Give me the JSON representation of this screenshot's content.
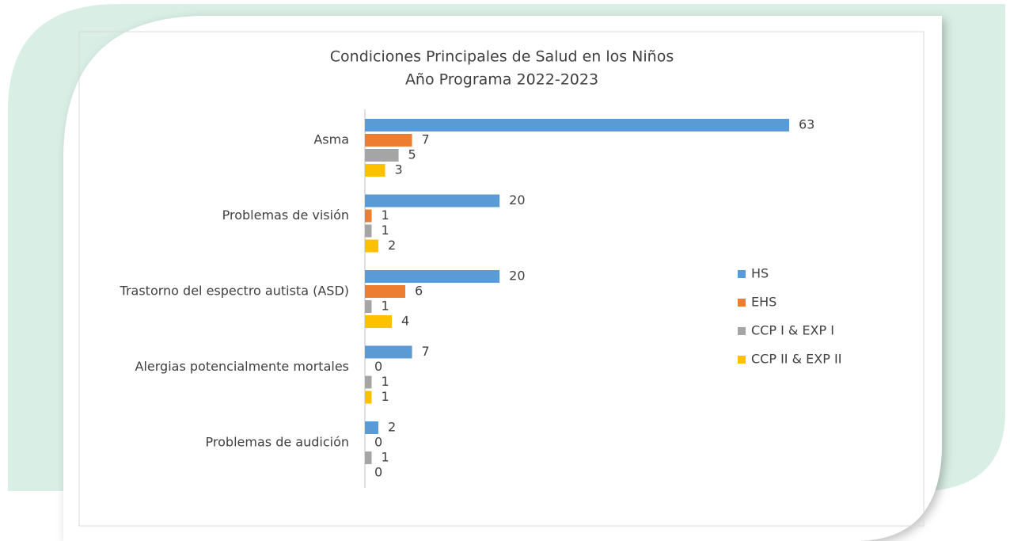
{
  "chart_data": {
    "type": "hbar",
    "title": "Condiciones Principales de Salud en los Niños",
    "subtitle": "Año Programa 2022-2023",
    "categories": [
      "Asma",
      "Problemas de visión",
      "Trastorno del espectro autista (ASD)",
      "Alergias potencialmente mortales",
      "Problemas de audición"
    ],
    "series": [
      {
        "name": "HS",
        "color": "#5b9bd5",
        "values": [
          63,
          20,
          20,
          7,
          2
        ]
      },
      {
        "name": "EHS",
        "color": "#ed7d31",
        "values": [
          7,
          1,
          6,
          0,
          0
        ]
      },
      {
        "name": "CCP I & EXP I",
        "color": "#a5a5a5",
        "values": [
          5,
          1,
          1,
          1,
          1
        ]
      },
      {
        "name": "CCP II & EXP II",
        "color": "#ffc000",
        "values": [
          3,
          2,
          4,
          1,
          0
        ]
      }
    ],
    "legend": "right"
  }
}
